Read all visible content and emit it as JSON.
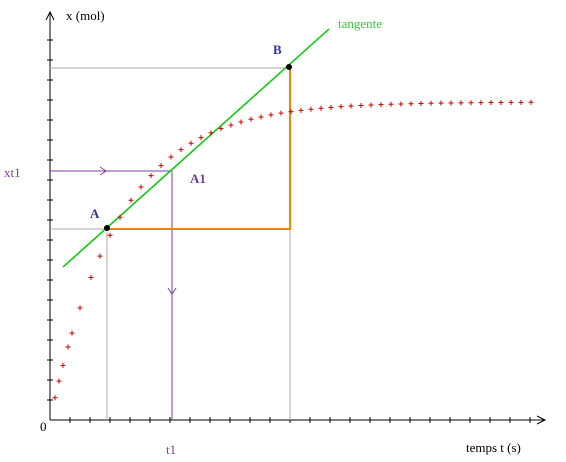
{
  "labels": {
    "y_axis": "x (mol)",
    "x_axis": "temps t (s)",
    "origin": "0",
    "tangent": "tangente",
    "point_a": "A",
    "point_b": "B",
    "point_a1": "A1",
    "xt1": "xt1",
    "t1": "t1"
  }
}
